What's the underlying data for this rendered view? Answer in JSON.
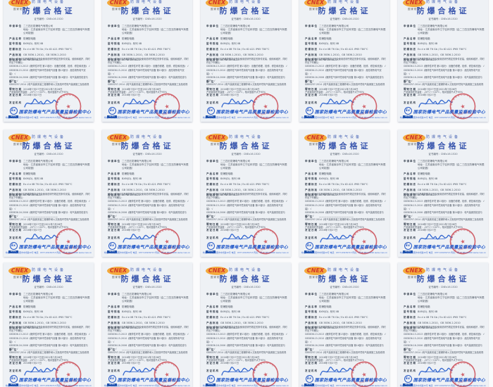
{
  "page": {
    "background": "#fbfbfc"
  },
  "grid": {
    "columns": 5,
    "rows": 3,
    "certificate_count": 15
  },
  "colors": {
    "paper": "#eef1f5",
    "title_blue": "#3a57ae",
    "logo_red": "#d3382a",
    "logo_yellow": "#f3a93c",
    "seal_red": "#c9404a",
    "footer_blue": "#1e56c8",
    "signature_blue": "#3568cf",
    "body_text": "#48525f"
  },
  "certificate": {
    "logo": {
      "brand": "CNEX",
      "sub": "国家防爆"
    },
    "header_small": "防爆电气设备",
    "title": "防爆合格证",
    "cert_no_line": "证书编号：CNEx16.1520",
    "fields": [
      {
        "label": "申请单位",
        "value": "二三四五防爆电气有限公司",
        "value2": "地址：江苏省南京市江宁区科学园（由二三四五防爆电气有限公司制造）"
      },
      {
        "label": "产品名称",
        "value": "防爆配电箱"
      },
      {
        "label": "型号规格",
        "value": "BXM(D)- 系列  IIB"
      },
      {
        "label": "防爆标志",
        "value": "Ex d e IIB T6 Gb / Ex tD A21 IP65 T80°C"
      },
      {
        "label": "产品标准",
        "value": "GB 3836.1-2010、GB 3836.2-2010"
      },
      {
        "label": "检验报告",
        "value": "NEPSI 16.1520"
      }
    ],
    "notice_lines": [
      "使用上述产品应严格按照本证书及使用说明书规定的条件安装、使用和维护，同时作出下列确认：",
      "GB3836.13-2013《爆炸性环境 第13部分：设备的修理、检修、修复和改造》 √",
      "GB3836.15-2010《爆炸性气体环境用电气设备 第15部分：危险场所电气安装》 √",
      "GB3836.16-2006《爆炸性气体环境用电气设备 第16部分：电气装置的检查与维护》 √",
      "GB50257-2014《电气装置安装工程爆炸和火灾危险环境电气装置施工及验收规范》 √",
      "产品使用环境温度：-20°C～+40°C，相对湿度不大于95%"
    ],
    "remark_label": "备  注",
    "remark_value": "——————————————",
    "dates": [
      {
        "label": "有效日期",
        "value": "2016年7月27日至2021年7月26日"
      },
      {
        "label": "发证日期",
        "value": "2016年7月27日"
      }
    ],
    "issuer_label": "发证机构",
    "seal": {
      "ring_text": "国家防爆电气产品质量监督检验中心",
      "star": "★",
      "bottom_text": "检验专用章"
    },
    "footer": {
      "badge_top": "Ex",
      "badge_bottom": "NEPSI",
      "center_name": "国家防爆电气产品质量监督检验中心",
      "contact": "地址：河南省南阳市中光路20号  电话：0377-63239713  传真：0377-63224296  www.cnex.cn"
    }
  }
}
